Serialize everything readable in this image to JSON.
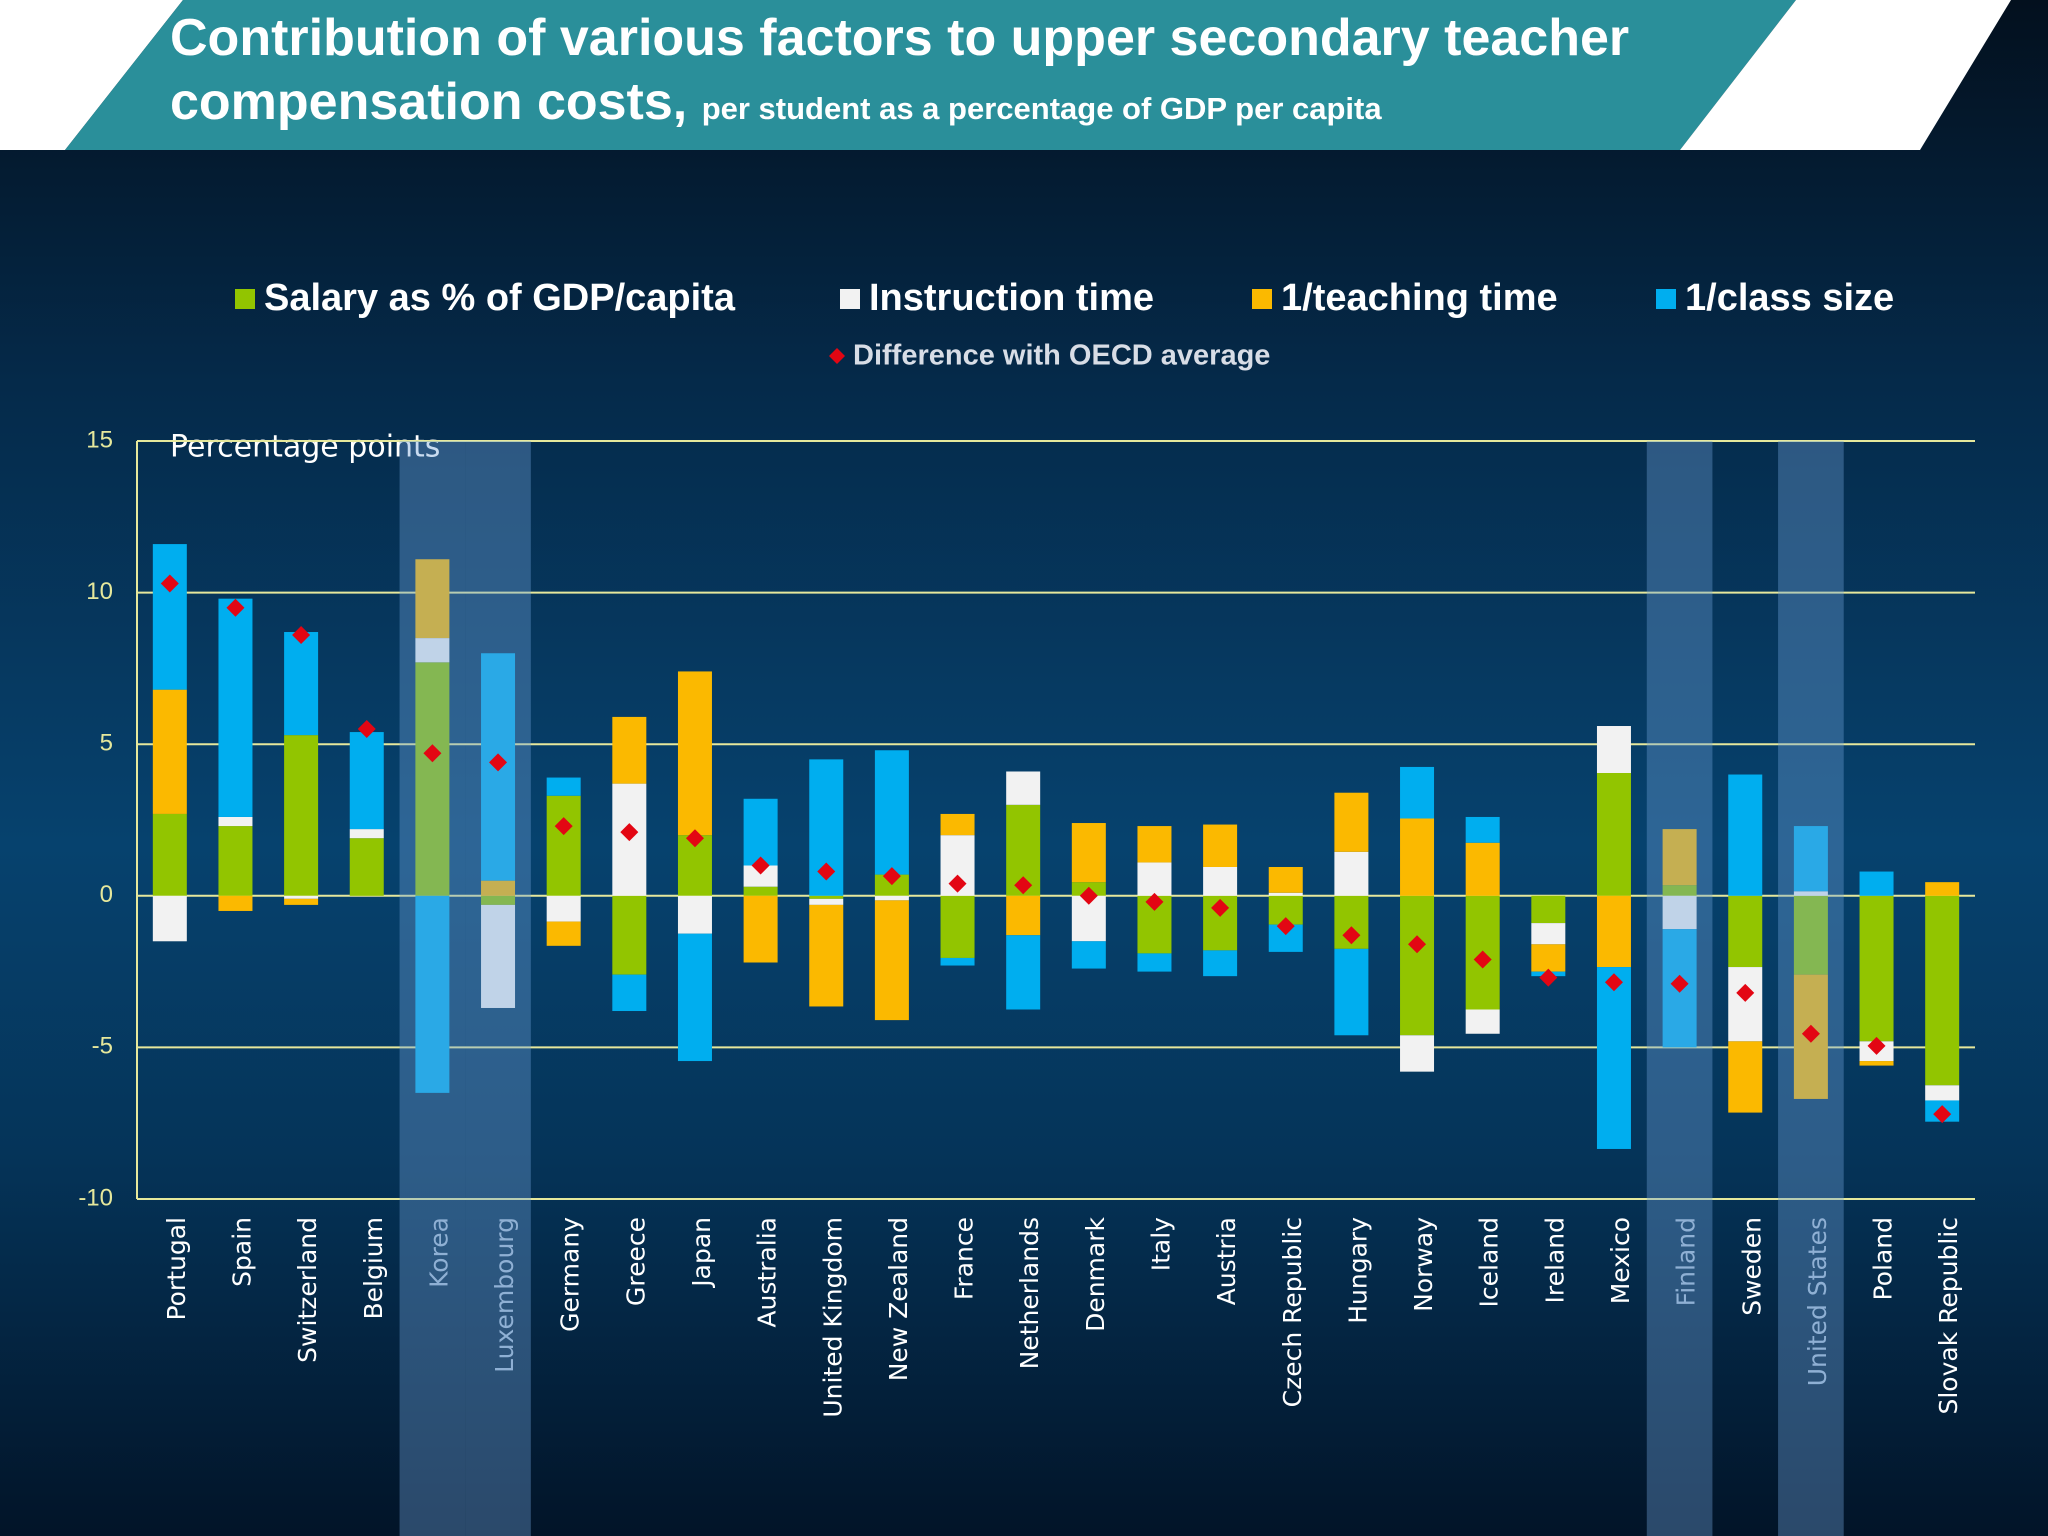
{
  "chart_data": {
    "type": "stacked_bar",
    "title": "Contribution of various factors to upper secondary teacher compensation costs,",
    "subtitle": "per student as a percentage of GDP per capita",
    "ylabel": "Percentage points",
    "categories": [
      "Portugal",
      "Spain",
      "Switzerland",
      "Belgium",
      "Korea",
      "Luxembourg",
      "Germany",
      "Greece",
      "Japan",
      "Australia",
      "United Kingdom",
      "New Zealand",
      "France",
      "Netherlands",
      "Denmark",
      "Italy",
      "Austria",
      "Czech Republic",
      "Hungary",
      "Norway",
      "Iceland",
      "Ireland",
      "Mexico",
      "Finland",
      "Sweden",
      "United States",
      "Poland",
      "Slovak Republic"
    ],
    "highlight": [
      4,
      5,
      23,
      25
    ],
    "series": [
      {
        "name": "Salary as % of GDP/capita",
        "color": "#92c500",
        "values": [
          2.7,
          2.3,
          5.3,
          1.9,
          7.7,
          -0.3,
          3.3,
          -2.6,
          2.0,
          0.3,
          -0.1,
          0.7,
          -2.05,
          3.0,
          0.45,
          -1.9,
          -1.8,
          -0.95,
          -1.75,
          -4.6,
          -3.75,
          -0.9,
          4.05,
          0.35,
          -2.35,
          -2.6,
          -4.8,
          -6.25
        ]
      },
      {
        "name": "Instruction time",
        "color": "#f2f2f2",
        "values": [
          -1.5,
          0.3,
          -0.1,
          0.3,
          0.8,
          -3.4,
          -0.85,
          3.7,
          -1.25,
          0.7,
          -0.2,
          -0.15,
          2.0,
          1.1,
          -1.5,
          1.1,
          0.95,
          0.1,
          1.45,
          -1.2,
          -0.8,
          -0.7,
          1.55,
          -1.1,
          -2.45,
          0.15,
          -0.65,
          -0.5
        ]
      },
      {
        "name": "1/teaching time",
        "color": "#fbb900",
        "values": [
          4.1,
          -0.5,
          -0.2,
          0,
          2.6,
          0.5,
          -0.8,
          2.2,
          5.4,
          -2.2,
          -3.35,
          -3.95,
          0.7,
          -1.3,
          1.95,
          1.2,
          1.4,
          0.85,
          1.95,
          2.55,
          1.75,
          -0.9,
          -2.35,
          1.85,
          -2.35,
          -4.1,
          -0.15,
          0.45
        ]
      },
      {
        "name": "1/class size",
        "color": "#00aeef",
        "values": [
          4.8,
          7.2,
          3.4,
          3.2,
          -6.5,
          7.5,
          0.6,
          -1.2,
          -4.2,
          2.2,
          4.5,
          4.1,
          -0.25,
          -2.45,
          -0.9,
          -0.6,
          -0.85,
          -0.9,
          -2.85,
          1.7,
          0.85,
          -0.15,
          -6.0,
          -3.9,
          4.0,
          2.15,
          0.8,
          -0.7
        ]
      }
    ],
    "difference": {
      "name": "Difference with OECD average",
      "color": "#e30613",
      "values": [
        10.3,
        9.5,
        8.6,
        5.5,
        4.7,
        4.4,
        2.3,
        2.1,
        1.9,
        1.0,
        0.8,
        0.65,
        0.4,
        0.35,
        0,
        -0.2,
        -0.4,
        -1.0,
        -1.3,
        -1.6,
        -2.1,
        -2.7,
        -2.85,
        -2.9,
        -3.2,
        -4.55,
        -4.95,
        -7.2
      ]
    },
    "ylim": [
      -10,
      15
    ],
    "yticks": [
      -10,
      -5,
      0,
      5,
      10,
      15
    ],
    "grid": true
  }
}
